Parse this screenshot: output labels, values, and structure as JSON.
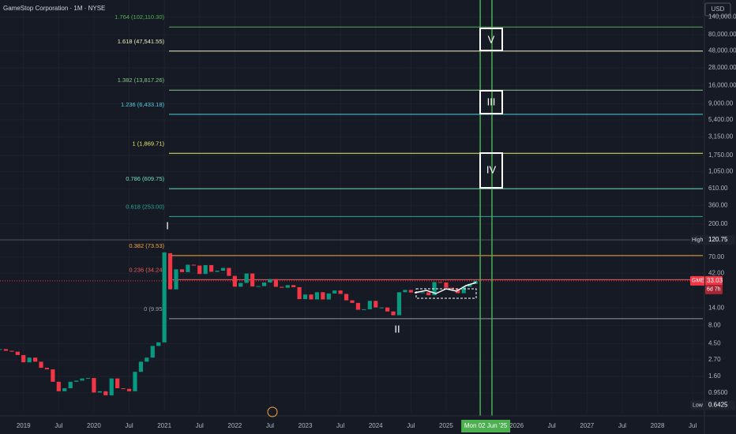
{
  "header": {
    "symbol": "GameStop Corporation · 1M · NYSE",
    "currency": "USD"
  },
  "chart_data": {
    "type": "candlestick",
    "log_scale": true,
    "grid": true,
    "up_color": "#089981",
    "down_color": "#f23645",
    "x": [
      "2018-09",
      "2018-10",
      "2018-11",
      "2018-12",
      "2019-01",
      "2019-02",
      "2019-03",
      "2019-04",
      "2019-05",
      "2019-06",
      "2019-07",
      "2019-08",
      "2019-09",
      "2019-10",
      "2019-11",
      "2019-12",
      "2020-01",
      "2020-02",
      "2020-03",
      "2020-04",
      "2020-05",
      "2020-06",
      "2020-07",
      "2020-08",
      "2020-09",
      "2020-10",
      "2020-11",
      "2020-12",
      "2021-01",
      "2021-02",
      "2021-03",
      "2021-04",
      "2021-05",
      "2021-06",
      "2021-07",
      "2021-08",
      "2021-09",
      "2021-10",
      "2021-11",
      "2021-12",
      "2022-01",
      "2022-02",
      "2022-03",
      "2022-04",
      "2022-05",
      "2022-06",
      "2022-07",
      "2022-08",
      "2022-09",
      "2022-10",
      "2022-11",
      "2022-12",
      "2023-01",
      "2023-02",
      "2023-03",
      "2023-04",
      "2023-05",
      "2023-06",
      "2023-07",
      "2023-08",
      "2023-09",
      "2023-10",
      "2023-11",
      "2023-12",
      "2024-01",
      "2024-02",
      "2024-03",
      "2024-04",
      "2024-05",
      "2024-06",
      "2024-07",
      "2024-08",
      "2024-09",
      "2024-10",
      "2024-11",
      "2024-12",
      "2025-01",
      "2025-02",
      "2025-03",
      "2025-04",
      "2025-05",
      "2025-06"
    ],
    "open": [
      3.8,
      3.8,
      3.6,
      3.5,
      3.15,
      2.5,
      2.9,
      2.55,
      2.1,
      2.0,
      1.35,
      1.0,
      1.1,
      1.35,
      1.4,
      1.5,
      1.52,
      0.96,
      1.0,
      0.88,
      1.5,
      1.1,
      1.08,
      1.0,
      1.85,
      2.55,
      2.9,
      4.2,
      4.7,
      79,
      25.2,
      47.5,
      43.5,
      55,
      53.5,
      41,
      54.3,
      43.9,
      45.5,
      49.6,
      38.6,
      27.4,
      30.9,
      41.6,
      27.6,
      27.9,
      31.3,
      34.9,
      27.3,
      26.5,
      28.8,
      27,
      18.5,
      21.4,
      18.3,
      23,
      18.3,
      22.1,
      24.3,
      21.8,
      17.8,
      16.4,
      13.2,
      13.4,
      17.5,
      14.2,
      14.2,
      12.5,
      11.1,
      23,
      24.7,
      22.8,
      22.9,
      22.9,
      20.9,
      31.7,
      31.3,
      26.5,
      25.5,
      22.3,
      27.3,
      29.9
    ],
    "high": 120.75,
    "low": 0.6425,
    "close": [
      3.8,
      3.6,
      3.5,
      3.15,
      2.5,
      2.9,
      2.55,
      2.1,
      2.0,
      1.35,
      1.0,
      1.1,
      1.35,
      1.4,
      1.5,
      1.52,
      0.96,
      1.0,
      0.88,
      1.5,
      1.1,
      1.08,
      1.0,
      1.85,
      2.55,
      2.9,
      4.2,
      4.7,
      81.25,
      25.2,
      47.5,
      43.5,
      55,
      53.5,
      41,
      54.3,
      43.9,
      45.5,
      49.6,
      38.6,
      27.4,
      30.9,
      41.6,
      27.6,
      27.9,
      31.3,
      34.9,
      27.3,
      26.5,
      28.8,
      27,
      18.5,
      21.4,
      18.3,
      23,
      18.3,
      22.1,
      24.3,
      21.8,
      17.8,
      16.4,
      13.2,
      13.4,
      17.5,
      14.2,
      14.2,
      12.5,
      11.1,
      23,
      24.7,
      22.8,
      22.9,
      22.9,
      20.9,
      31.7,
      31.3,
      26.5,
      25.5,
      22.3,
      27.3,
      29.9,
      33.03
    ],
    "xlim": [
      "2018-09",
      "2028-09"
    ],
    "xticks": [
      {
        "value": "2019-01",
        "label": "2019"
      },
      {
        "value": "2019-07",
        "label": "Jul"
      },
      {
        "value": "2020-01",
        "label": "2020"
      },
      {
        "value": "2020-07",
        "label": "Jul"
      },
      {
        "value": "2021-01",
        "label": "2021"
      },
      {
        "value": "2021-07",
        "label": "Jul"
      },
      {
        "value": "2022-01",
        "label": "2022"
      },
      {
        "value": "2022-07",
        "label": "Jul"
      },
      {
        "value": "2023-01",
        "label": "2023"
      },
      {
        "value": "2023-07",
        "label": "Jul"
      },
      {
        "value": "2024-01",
        "label": "2024"
      },
      {
        "value": "2024-07",
        "label": "Jul"
      },
      {
        "value": "2025-01",
        "label": "2025"
      },
      {
        "value": "2026-01",
        "label": "2026"
      },
      {
        "value": "2026-07",
        "label": "Jul"
      },
      {
        "value": "2027-01",
        "label": "2027"
      },
      {
        "value": "2027-07",
        "label": "Jul"
      },
      {
        "value": "2028-01",
        "label": "2028"
      },
      {
        "value": "2028-07",
        "label": "Jul"
      }
    ],
    "crosshair_date": {
      "value": "2025-06",
      "label": "Mon 02 Jun '25"
    },
    "vlines": [
      "2025-06",
      "2025-08"
    ],
    "ylim": [
      0.52,
      240000
    ],
    "yticks": [
      {
        "value": 140000,
        "label": "140,000.00"
      },
      {
        "value": 80000,
        "label": "80,000.00"
      },
      {
        "value": 48000,
        "label": "48,000.00"
      },
      {
        "value": 28000,
        "label": "28,000.00"
      },
      {
        "value": 16000,
        "label": "16,000.00"
      },
      {
        "value": 9000,
        "label": "9,000.00"
      },
      {
        "value": 5400,
        "label": "5,400.00"
      },
      {
        "value": 3150,
        "label": "3,150.00"
      },
      {
        "value": 1750,
        "label": "1,750.00"
      },
      {
        "value": 1050,
        "label": "1,050.00"
      },
      {
        "value": 610,
        "label": "610.00"
      },
      {
        "value": 360,
        "label": "360.00"
      },
      {
        "value": 200,
        "label": "200.00"
      },
      {
        "value": 70,
        "label": "70.00"
      },
      {
        "value": 42,
        "label": "42.00"
      },
      {
        "value": 14,
        "label": "14.00"
      },
      {
        "value": 8,
        "label": "8.00"
      },
      {
        "value": 4.5,
        "label": "4.50"
      },
      {
        "value": 2.7,
        "label": "2.70"
      },
      {
        "value": 1.6,
        "label": "1.60"
      },
      {
        "value": 0.95,
        "label": "0.9500"
      }
    ],
    "fib_levels": [
      {
        "value": 102110.3,
        "label": "1.764 (102,110.30)",
        "color": "#4caf50"
      },
      {
        "value": 47541.55,
        "label": "1.618 (47,541.55)",
        "color": "#f0f0c0"
      },
      {
        "value": 13817.26,
        "label": "1.382 (13,817.26)",
        "color": "#81c784"
      },
      {
        "value": 6433.18,
        "label": "1.236 (6,433.18)",
        "color": "#4dd0e1"
      },
      {
        "value": 1869.71,
        "label": "1 (1,869.71)",
        "color": "#e5e56a"
      },
      {
        "value": 609.75,
        "label": "0.786 (609.75)",
        "color": "#6fe0b8"
      },
      {
        "value": 253.0,
        "label": "0.618 (253.00)",
        "color": "#26a69a"
      },
      {
        "value": 73.53,
        "label": "0.382 (73.53)",
        "color": "#f7a63a"
      },
      {
        "value": 34.24,
        "label": "0.236 (34.24)",
        "color": "#f05a5a"
      },
      {
        "value": 9.95,
        "label": "0 (9.95)",
        "color": "#9598a1"
      }
    ],
    "high_label": "High",
    "low_label": "Low",
    "last_symbol": "GME",
    "last_price": 33.03,
    "countdown": "6d 7h"
  },
  "wave_labels": [
    "I",
    "II",
    "III",
    "IV",
    "V"
  ]
}
